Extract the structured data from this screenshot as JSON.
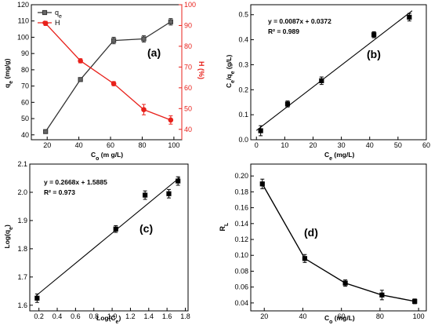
{
  "chart_data": [
    {
      "panel": "(a)",
      "type": "line",
      "x": [
        19,
        41,
        62,
        81,
        98
      ],
      "series": [
        {
          "name": "qe",
          "axis": "left",
          "color": "#333333",
          "marker": "square",
          "values": [
            42,
            74,
            98,
            99,
            109.5
          ],
          "errors": [
            1,
            1,
            2,
            2,
            2
          ]
        },
        {
          "name": "H",
          "axis": "right",
          "color": "#e8211b",
          "marker": "circle",
          "values": [
            91,
            73,
            62,
            49.5,
            44.5
          ],
          "errors": [
            1,
            1,
            1,
            2.5,
            2
          ]
        }
      ],
      "xlabel": "Co (m g/L)",
      "ylabel": "qe (mg/g)",
      "y2label": "H (%)",
      "xlim": [
        10,
        105
      ],
      "ylim": [
        37,
        120
      ],
      "y2lim": [
        35,
        100
      ],
      "xticks": [
        20,
        40,
        60,
        80,
        100
      ],
      "yticks": [
        40,
        50,
        60,
        70,
        80,
        90,
        100,
        110,
        120
      ],
      "y2ticks": [
        40,
        50,
        60,
        70,
        80,
        90,
        100
      ],
      "legend": [
        "qe",
        "H"
      ],
      "legend_position": "top-left",
      "grid": false
    },
    {
      "panel": "(b)",
      "type": "scatter",
      "x": [
        1.5,
        11,
        23,
        41.5,
        54
      ],
      "y": [
        0.036,
        0.143,
        0.236,
        0.42,
        0.49
      ],
      "errors": [
        0.02,
        0.012,
        0.015,
        0.012,
        0.015
      ],
      "fit": {
        "equation": "y = 0.0087x + 0.0372",
        "r2": "R² = 0.989",
        "slope": 0.0087,
        "intercept": 0.0372
      },
      "xlabel": "Ce (mg/L)",
      "ylabel": "Ce/qe (g/L)",
      "xlim": [
        -2,
        60
      ],
      "ylim": [
        0,
        0.54
      ],
      "xticks": [
        0,
        10,
        20,
        30,
        40,
        50,
        60
      ],
      "yticks": [
        0.0,
        0.1,
        0.2,
        0.3,
        0.4,
        0.5
      ],
      "grid": false
    },
    {
      "panel": "(c)",
      "type": "scatter",
      "x": [
        0.18,
        1.04,
        1.36,
        1.62,
        1.72
      ],
      "y": [
        1.625,
        1.87,
        1.99,
        1.995,
        2.04
      ],
      "errors": [
        0.015,
        0.012,
        0.015,
        0.015,
        0.015
      ],
      "fit": {
        "equation": "y = 0.2668x + 1.5885",
        "r2": "R² = 0.973",
        "slope": 0.2668,
        "intercept": 1.5885
      },
      "xlabel": "Log(Ce)",
      "ylabel": "Log(qe)",
      "xlim": [
        0.1,
        1.83
      ],
      "ylim": [
        1.58,
        2.1
      ],
      "xticks": [
        0.2,
        0.4,
        0.6,
        0.8,
        1.0,
        1.2,
        1.4,
        1.6,
        1.8
      ],
      "yticks": [
        1.6,
        1.7,
        1.8,
        1.9,
        2.0,
        2.1
      ],
      "grid": false
    },
    {
      "panel": "(d)",
      "type": "line",
      "x": [
        19,
        41,
        62,
        81,
        98
      ],
      "y": [
        0.19,
        0.096,
        0.065,
        0.05,
        0.042
      ],
      "errors": [
        0.006,
        0.005,
        0.004,
        0.006,
        0.003
      ],
      "xlabel": "Co (mg/L)",
      "ylabel": "RL",
      "xlim": [
        13,
        104
      ],
      "ylim": [
        0.03,
        0.215
      ],
      "xticks": [
        20,
        40,
        60,
        80,
        100
      ],
      "yticks": [
        0.04,
        0.06,
        0.08,
        0.1,
        0.12,
        0.14,
        0.16,
        0.18,
        0.2
      ],
      "grid": false
    }
  ]
}
